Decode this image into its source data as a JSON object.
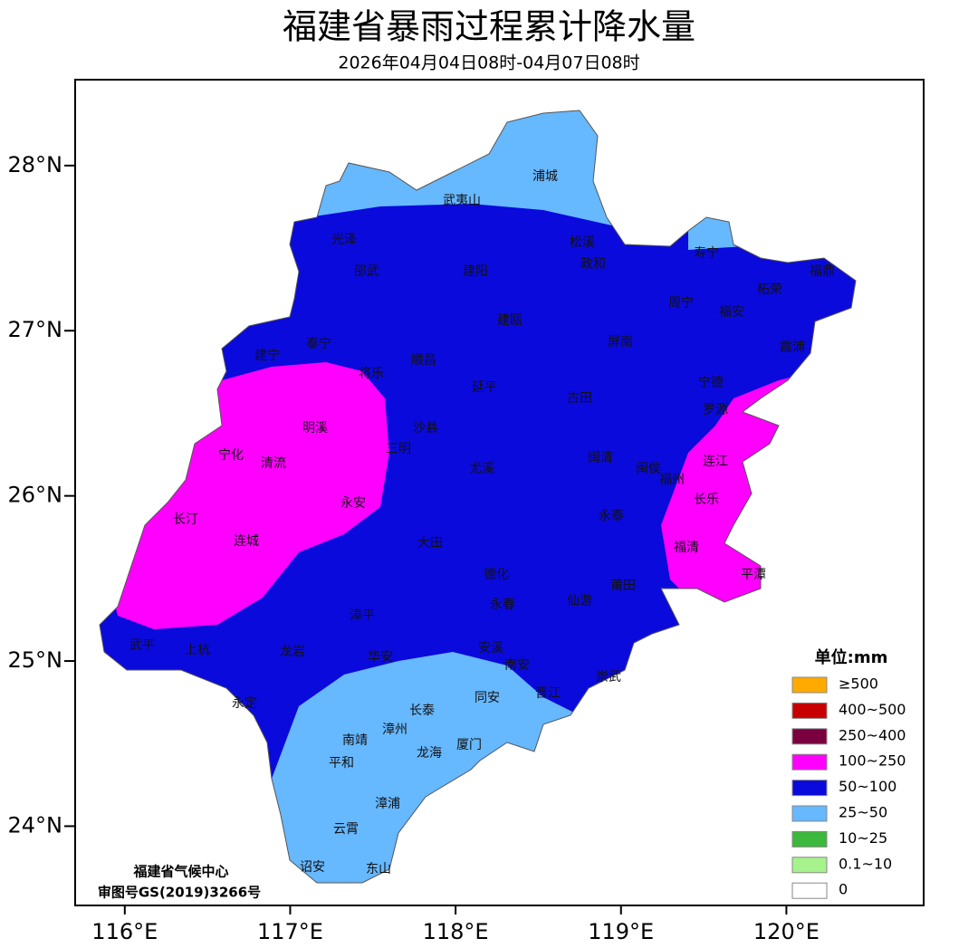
{
  "header": {
    "title": "福建省暴雨过程累计降水量",
    "subtitle": "2026年04月04日08时-04月07日08时"
  },
  "map": {
    "lonlim": [
      115.7,
      120.83
    ],
    "latlim": [
      23.52,
      28.52
    ],
    "lon_ticks": [
      {
        "value": 116,
        "label": "116°E"
      },
      {
        "value": 117,
        "label": "117°E"
      },
      {
        "value": 118,
        "label": "118°E"
      },
      {
        "value": 119,
        "label": "119°E"
      },
      {
        "value": 120,
        "label": "120°E"
      }
    ],
    "lat_ticks": [
      {
        "value": 28,
        "label": "28°N"
      },
      {
        "value": 27,
        "label": "27°N"
      },
      {
        "value": 26,
        "label": "26°N"
      },
      {
        "value": 25,
        "label": "25°N"
      },
      {
        "value": 24,
        "label": "24°N"
      }
    ],
    "cities": [
      "浦城",
      "武夷山",
      "光泽",
      "松溪",
      "寿宁",
      "邵武",
      "建阳",
      "政和",
      "福鼎",
      "柘荣",
      "周宁",
      "福安",
      "建瓯",
      "泰宁",
      "屏南",
      "霞浦",
      "建宁",
      "将乐",
      "顺昌",
      "延平",
      "古田",
      "宁德",
      "罗源",
      "明溪",
      "沙县",
      "三明",
      "宁化",
      "清流",
      "尤溪",
      "闽清",
      "闽侯",
      "连江",
      "福州",
      "长乐",
      "永安",
      "长汀",
      "永泰",
      "连城",
      "大田",
      "福清",
      "德化",
      "平潭",
      "莆田",
      "仙游",
      "永春",
      "漳平",
      "武平",
      "上杭",
      "龙岩",
      "安溪",
      "华安",
      "南安",
      "崇武",
      "晋江",
      "永定",
      "长泰",
      "同安",
      "漳州",
      "南靖",
      "厦门",
      "龙海",
      "平和",
      "漳浦",
      "云霄",
      "诏安",
      "东山"
    ],
    "credits": [
      "福建省气候中心",
      "审图号GS(2019)3266号"
    ]
  },
  "legend": {
    "title": "单位:mm",
    "items": [
      {
        "label": "≥500",
        "color": "#ffaa00"
      },
      {
        "label": "400~500",
        "color": "#c80000"
      },
      {
        "label": "250~400",
        "color": "#7b0040"
      },
      {
        "label": "100~250",
        "color": "#ff00ff"
      },
      {
        "label": "50~100",
        "color": "#0a0adc"
      },
      {
        "label": "25~50",
        "color": "#66b8ff"
      },
      {
        "label": "10~25",
        "color": "#3cb83c"
      },
      {
        "label": "0.1~10",
        "color": "#a6f28c"
      },
      {
        "label": "0",
        "color": "#ffffff"
      }
    ]
  }
}
